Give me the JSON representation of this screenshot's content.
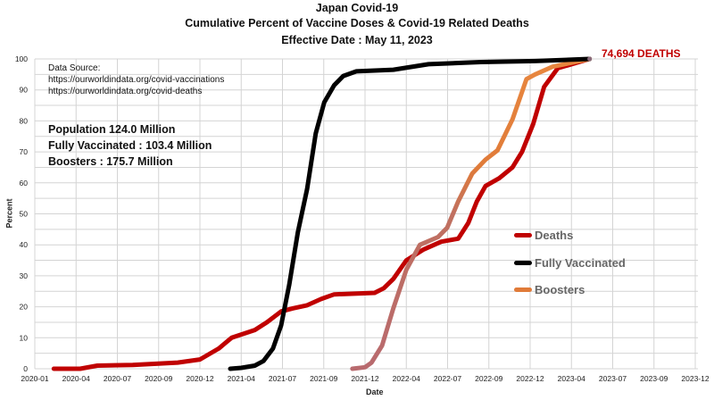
{
  "chart_data": {
    "type": "line",
    "title": "Japan Covid-19",
    "subtitle": "Cumulative Percent of Vaccine Doses & Covid-19 Related Deaths",
    "effective_date": "Effective Date : May 11, 2023",
    "xlabel": "Date",
    "ylabel": "Percent",
    "ylim": [
      0,
      100
    ],
    "yticks": [
      "0",
      "10",
      "20",
      "30",
      "40",
      "50",
      "60",
      "70",
      "80",
      "90",
      "100"
    ],
    "xticks": [
      "2020-01",
      "2020-04",
      "2020-07",
      "2020-09",
      "2020-12",
      "2021-04",
      "2021-07",
      "2021-09",
      "2021-12",
      "2022-04",
      "2022-07",
      "2022-09",
      "2022-12",
      "2023-04",
      "2023-07",
      "2023-09",
      "2023-12"
    ],
    "grid": true,
    "legend_placement": "center-right",
    "annotations": {
      "data_source_title": "Data Source:",
      "source_1": "https://ourworldindata.org/covid-vaccinations",
      "source_2": "https://ourworldindata.org/covid-deaths",
      "population": "Population 124.0 Million",
      "fully_vaccinated": "Fully Vaccinated : 103.4 Million",
      "boosters": "Boosters : 175.7 Million",
      "deaths_total": "74,694 DEATHS"
    },
    "series": [
      {
        "name": "Deaths",
        "color": "#c00000",
        "points": [
          [
            "2020-02-12",
            0
          ],
          [
            "2020-04-10",
            0
          ],
          [
            "2020-05-18",
            1
          ],
          [
            "2020-07-24",
            1.2
          ],
          [
            "2020-10-13",
            2
          ],
          [
            "2020-12-01",
            3
          ],
          [
            "2021-01-25",
            6.5
          ],
          [
            "2021-03-04",
            10
          ],
          [
            "2021-05-01",
            12.5
          ],
          [
            "2021-05-28",
            15
          ],
          [
            "2021-06-28",
            18.5
          ],
          [
            "2021-07-17",
            19.5
          ],
          [
            "2021-08-07",
            20.5
          ],
          [
            "2021-08-28",
            22.5
          ],
          [
            "2021-09-24",
            24
          ],
          [
            "2021-12-29",
            24.5
          ],
          [
            "2022-01-25",
            26
          ],
          [
            "2022-02-22",
            29
          ],
          [
            "2022-04-01",
            35
          ],
          [
            "2022-05-09",
            38.5
          ],
          [
            "2022-06-17",
            41
          ],
          [
            "2022-07-17",
            42
          ],
          [
            "2022-08-01",
            47
          ],
          [
            "2022-08-14",
            54
          ],
          [
            "2022-08-27",
            59
          ],
          [
            "2022-09-24",
            61.5
          ],
          [
            "2022-10-23",
            65
          ],
          [
            "2022-11-13",
            70
          ],
          [
            "2022-12-10",
            79
          ],
          [
            "2023-01-11",
            91
          ],
          [
            "2023-02-20",
            97
          ],
          [
            "2023-05-11",
            100
          ]
        ]
      },
      {
        "name": "Fully Vaccinated",
        "color": "#000000",
        "points": [
          [
            "2021-02-28",
            0
          ],
          [
            "2021-04-01",
            0.3
          ],
          [
            "2021-05-01",
            1
          ],
          [
            "2021-05-20",
            2.5
          ],
          [
            "2021-06-10",
            6.5
          ],
          [
            "2021-06-28",
            14
          ],
          [
            "2021-07-11",
            27
          ],
          [
            "2021-07-24",
            44
          ],
          [
            "2021-08-07",
            58
          ],
          [
            "2021-08-20",
            76
          ],
          [
            "2021-09-02",
            86
          ],
          [
            "2021-09-24",
            91.5
          ],
          [
            "2021-10-14",
            94.5
          ],
          [
            "2021-11-12",
            96
          ],
          [
            "2022-02-22",
            96.5
          ],
          [
            "2022-05-20",
            98.3
          ],
          [
            "2022-08-20",
            99
          ],
          [
            "2022-12-15",
            99.3
          ],
          [
            "2023-05-11",
            100
          ]
        ]
      },
      {
        "name": "Boosters",
        "color": "#e07b39",
        "points": [
          [
            "2021-11-03",
            0
          ],
          [
            "2021-12-01",
            0.5
          ],
          [
            "2021-12-20",
            2
          ],
          [
            "2022-01-20",
            7.5
          ],
          [
            "2022-02-22",
            19.5
          ],
          [
            "2022-04-01",
            32
          ],
          [
            "2022-05-01",
            40
          ],
          [
            "2022-06-10",
            42.5
          ],
          [
            "2022-06-30",
            45.5
          ],
          [
            "2022-07-17",
            54
          ],
          [
            "2022-08-07",
            63
          ],
          [
            "2022-08-27",
            67.5
          ],
          [
            "2022-09-20",
            70.5
          ],
          [
            "2022-10-23",
            80.5
          ],
          [
            "2022-11-23",
            93.5
          ],
          [
            "2022-12-15",
            95
          ],
          [
            "2023-02-05",
            97.5
          ],
          [
            "2023-05-11",
            100
          ]
        ]
      }
    ]
  }
}
